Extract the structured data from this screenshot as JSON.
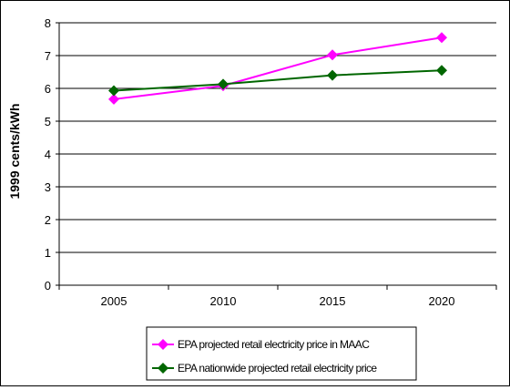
{
  "chart_data": {
    "type": "line",
    "title": "",
    "xlabel": "",
    "ylabel": "1999 cents/kWh",
    "x": [
      "2005",
      "2010",
      "2015",
      "2020"
    ],
    "ylim": [
      0,
      8
    ],
    "yticks": [
      0,
      1,
      2,
      3,
      4,
      5,
      6,
      7,
      8
    ],
    "grid": true,
    "legend_position": "bottom",
    "series": [
      {
        "name": "EPA projected retail electricity price in MAAC",
        "color": "#ff00ff",
        "marker": "diamond",
        "values": [
          5.67,
          6.08,
          7.02,
          7.55
        ]
      },
      {
        "name": "EPA nationwide projected retail electricity price",
        "color": "#006600",
        "marker": "diamond",
        "values": [
          5.93,
          6.13,
          6.4,
          6.55
        ]
      }
    ]
  }
}
